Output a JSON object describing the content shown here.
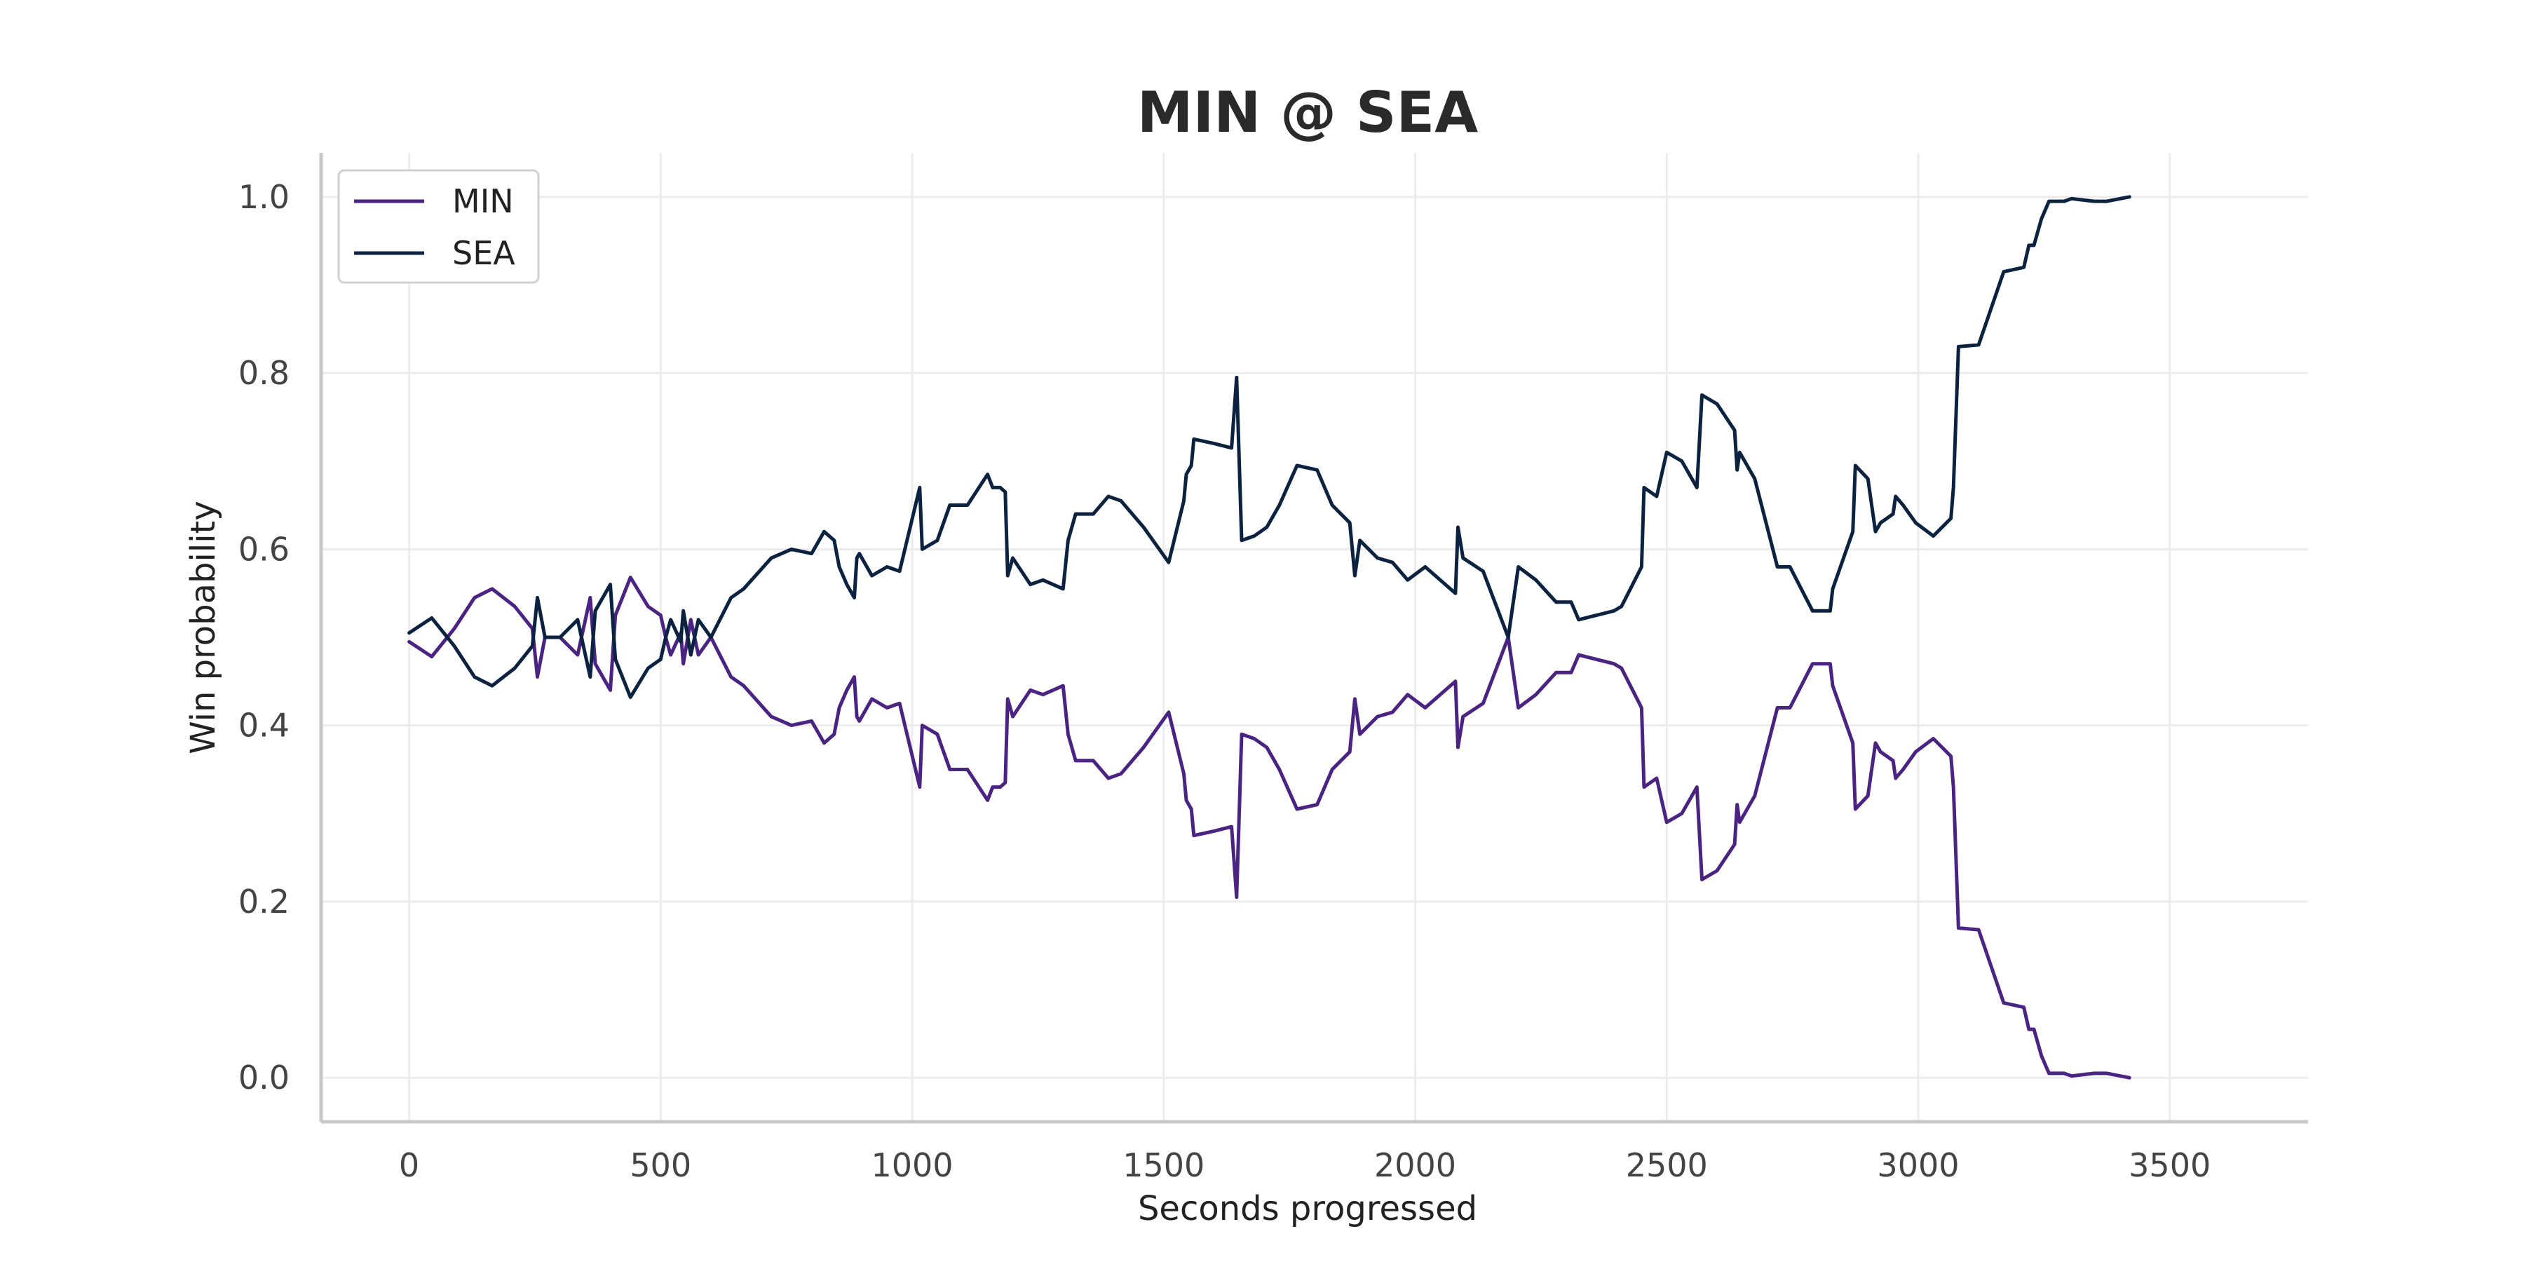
{
  "chart_data": {
    "type": "line",
    "title": "MIN @ SEA",
    "xlabel": "Seconds progressed",
    "ylabel": "Win probability",
    "xlim": [
      -175,
      3775
    ],
    "ylim": [
      -0.05,
      1.05
    ],
    "xticks": [
      0,
      500,
      1000,
      1500,
      2000,
      2500,
      3000,
      3500
    ],
    "yticks": [
      0.0,
      0.2,
      0.4,
      0.6,
      0.8,
      1.0
    ],
    "xtick_labels": [
      "0",
      "500",
      "1000",
      "1500",
      "2000",
      "2500",
      "3000",
      "3500"
    ],
    "ytick_labels": [
      "0.0",
      "0.2",
      "0.4",
      "0.6",
      "0.8",
      "1.0"
    ],
    "grid": true,
    "legend_position": "top-left",
    "series": [
      {
        "name": "MIN",
        "color": "#4b2483",
        "points": [
          [
            0,
            0.495
          ],
          [
            45,
            0.478
          ],
          [
            90,
            0.51
          ],
          [
            130,
            0.545
          ],
          [
            165,
            0.555
          ],
          [
            210,
            0.535
          ],
          [
            245,
            0.51
          ],
          [
            255,
            0.455
          ],
          [
            270,
            0.5
          ],
          [
            300,
            0.5
          ],
          [
            335,
            0.48
          ],
          [
            360,
            0.545
          ],
          [
            370,
            0.47
          ],
          [
            400,
            0.44
          ],
          [
            410,
            0.525
          ],
          [
            440,
            0.568
          ],
          [
            475,
            0.535
          ],
          [
            500,
            0.525
          ],
          [
            510,
            0.5
          ],
          [
            520,
            0.48
          ],
          [
            540,
            0.505
          ],
          [
            545,
            0.47
          ],
          [
            560,
            0.52
          ],
          [
            575,
            0.48
          ],
          [
            600,
            0.5
          ],
          [
            640,
            0.455
          ],
          [
            665,
            0.445
          ],
          [
            720,
            0.41
          ],
          [
            760,
            0.4
          ],
          [
            800,
            0.405
          ],
          [
            825,
            0.38
          ],
          [
            845,
            0.39
          ],
          [
            855,
            0.42
          ],
          [
            870,
            0.44
          ],
          [
            885,
            0.455
          ],
          [
            890,
            0.41
          ],
          [
            895,
            0.405
          ],
          [
            920,
            0.43
          ],
          [
            950,
            0.42
          ],
          [
            975,
            0.425
          ],
          [
            1015,
            0.33
          ],
          [
            1020,
            0.4
          ],
          [
            1050,
            0.39
          ],
          [
            1075,
            0.35
          ],
          [
            1110,
            0.35
          ],
          [
            1150,
            0.315
          ],
          [
            1160,
            0.33
          ],
          [
            1175,
            0.33
          ],
          [
            1185,
            0.335
          ],
          [
            1190,
            0.43
          ],
          [
            1200,
            0.41
          ],
          [
            1235,
            0.44
          ],
          [
            1260,
            0.435
          ],
          [
            1300,
            0.445
          ],
          [
            1310,
            0.39
          ],
          [
            1325,
            0.36
          ],
          [
            1360,
            0.36
          ],
          [
            1390,
            0.34
          ],
          [
            1415,
            0.345
          ],
          [
            1460,
            0.375
          ],
          [
            1510,
            0.415
          ],
          [
            1540,
            0.345
          ],
          [
            1545,
            0.315
          ],
          [
            1555,
            0.305
          ],
          [
            1560,
            0.275
          ],
          [
            1600,
            0.28
          ],
          [
            1635,
            0.285
          ],
          [
            1645,
            0.205
          ],
          [
            1655,
            0.39
          ],
          [
            1680,
            0.385
          ],
          [
            1705,
            0.375
          ],
          [
            1730,
            0.35
          ],
          [
            1765,
            0.305
          ],
          [
            1805,
            0.31
          ],
          [
            1835,
            0.35
          ],
          [
            1870,
            0.37
          ],
          [
            1880,
            0.43
          ],
          [
            1890,
            0.39
          ],
          [
            1925,
            0.41
          ],
          [
            1955,
            0.415
          ],
          [
            1985,
            0.435
          ],
          [
            2020,
            0.42
          ],
          [
            2080,
            0.45
          ],
          [
            2085,
            0.375
          ],
          [
            2095,
            0.41
          ],
          [
            2135,
            0.425
          ],
          [
            2155,
            0.455
          ],
          [
            2185,
            0.5
          ],
          [
            2205,
            0.42
          ],
          [
            2240,
            0.435
          ],
          [
            2280,
            0.46
          ],
          [
            2310,
            0.46
          ],
          [
            2325,
            0.48
          ],
          [
            2360,
            0.475
          ],
          [
            2395,
            0.47
          ],
          [
            2410,
            0.465
          ],
          [
            2450,
            0.42
          ],
          [
            2455,
            0.33
          ],
          [
            2480,
            0.34
          ],
          [
            2500,
            0.29
          ],
          [
            2530,
            0.3
          ],
          [
            2560,
            0.33
          ],
          [
            2570,
            0.225
          ],
          [
            2600,
            0.235
          ],
          [
            2635,
            0.265
          ],
          [
            2640,
            0.31
          ],
          [
            2645,
            0.29
          ],
          [
            2675,
            0.32
          ],
          [
            2720,
            0.42
          ],
          [
            2745,
            0.42
          ],
          [
            2790,
            0.47
          ],
          [
            2825,
            0.47
          ],
          [
            2830,
            0.445
          ],
          [
            2870,
            0.38
          ],
          [
            2875,
            0.305
          ],
          [
            2900,
            0.32
          ],
          [
            2915,
            0.38
          ],
          [
            2925,
            0.37
          ],
          [
            2950,
            0.36
          ],
          [
            2955,
            0.34
          ],
          [
            2970,
            0.35
          ],
          [
            2995,
            0.37
          ],
          [
            3030,
            0.385
          ],
          [
            3065,
            0.365
          ],
          [
            3070,
            0.33
          ],
          [
            3080,
            0.17
          ],
          [
            3120,
            0.168
          ],
          [
            3170,
            0.085
          ],
          [
            3210,
            0.08
          ],
          [
            3220,
            0.055
          ],
          [
            3230,
            0.055
          ],
          [
            3245,
            0.025
          ],
          [
            3260,
            0.005
          ],
          [
            3290,
            0.005
          ],
          [
            3305,
            0.002
          ],
          [
            3320,
            0.003
          ],
          [
            3350,
            0.005
          ],
          [
            3375,
            0.005
          ],
          [
            3420,
            0.0
          ]
        ]
      },
      {
        "name": "SEA",
        "color": "#0b2240",
        "points": [
          [
            0,
            0.505
          ],
          [
            45,
            0.522
          ],
          [
            90,
            0.49
          ],
          [
            130,
            0.455
          ],
          [
            165,
            0.445
          ],
          [
            210,
            0.465
          ],
          [
            245,
            0.49
          ],
          [
            255,
            0.545
          ],
          [
            270,
            0.5
          ],
          [
            300,
            0.5
          ],
          [
            335,
            0.52
          ],
          [
            360,
            0.455
          ],
          [
            370,
            0.53
          ],
          [
            400,
            0.56
          ],
          [
            410,
            0.475
          ],
          [
            440,
            0.432
          ],
          [
            475,
            0.465
          ],
          [
            500,
            0.475
          ],
          [
            510,
            0.5
          ],
          [
            520,
            0.52
          ],
          [
            540,
            0.495
          ],
          [
            545,
            0.53
          ],
          [
            560,
            0.48
          ],
          [
            575,
            0.52
          ],
          [
            600,
            0.5
          ],
          [
            640,
            0.545
          ],
          [
            665,
            0.555
          ],
          [
            720,
            0.59
          ],
          [
            760,
            0.6
          ],
          [
            800,
            0.595
          ],
          [
            825,
            0.62
          ],
          [
            845,
            0.61
          ],
          [
            855,
            0.58
          ],
          [
            870,
            0.56
          ],
          [
            885,
            0.545
          ],
          [
            890,
            0.59
          ],
          [
            895,
            0.595
          ],
          [
            920,
            0.57
          ],
          [
            950,
            0.58
          ],
          [
            975,
            0.575
          ],
          [
            1015,
            0.67
          ],
          [
            1020,
            0.6
          ],
          [
            1050,
            0.61
          ],
          [
            1075,
            0.65
          ],
          [
            1110,
            0.65
          ],
          [
            1150,
            0.685
          ],
          [
            1160,
            0.67
          ],
          [
            1175,
            0.67
          ],
          [
            1185,
            0.665
          ],
          [
            1190,
            0.57
          ],
          [
            1200,
            0.59
          ],
          [
            1235,
            0.56
          ],
          [
            1260,
            0.565
          ],
          [
            1300,
            0.555
          ],
          [
            1310,
            0.61
          ],
          [
            1325,
            0.64
          ],
          [
            1360,
            0.64
          ],
          [
            1390,
            0.66
          ],
          [
            1415,
            0.655
          ],
          [
            1460,
            0.625
          ],
          [
            1510,
            0.585
          ],
          [
            1540,
            0.655
          ],
          [
            1545,
            0.685
          ],
          [
            1555,
            0.695
          ],
          [
            1560,
            0.725
          ],
          [
            1600,
            0.72
          ],
          [
            1635,
            0.715
          ],
          [
            1645,
            0.795
          ],
          [
            1655,
            0.61
          ],
          [
            1680,
            0.615
          ],
          [
            1705,
            0.625
          ],
          [
            1730,
            0.65
          ],
          [
            1765,
            0.695
          ],
          [
            1805,
            0.69
          ],
          [
            1835,
            0.65
          ],
          [
            1870,
            0.63
          ],
          [
            1880,
            0.57
          ],
          [
            1890,
            0.61
          ],
          [
            1925,
            0.59
          ],
          [
            1955,
            0.585
          ],
          [
            1985,
            0.565
          ],
          [
            2020,
            0.58
          ],
          [
            2080,
            0.55
          ],
          [
            2085,
            0.625
          ],
          [
            2095,
            0.59
          ],
          [
            2135,
            0.575
          ],
          [
            2155,
            0.545
          ],
          [
            2185,
            0.5
          ],
          [
            2205,
            0.58
          ],
          [
            2240,
            0.565
          ],
          [
            2280,
            0.54
          ],
          [
            2310,
            0.54
          ],
          [
            2325,
            0.52
          ],
          [
            2360,
            0.525
          ],
          [
            2395,
            0.53
          ],
          [
            2410,
            0.535
          ],
          [
            2450,
            0.58
          ],
          [
            2455,
            0.67
          ],
          [
            2480,
            0.66
          ],
          [
            2500,
            0.71
          ],
          [
            2530,
            0.7
          ],
          [
            2560,
            0.67
          ],
          [
            2570,
            0.775
          ],
          [
            2600,
            0.765
          ],
          [
            2635,
            0.735
          ],
          [
            2640,
            0.69
          ],
          [
            2645,
            0.71
          ],
          [
            2675,
            0.68
          ],
          [
            2720,
            0.58
          ],
          [
            2745,
            0.58
          ],
          [
            2790,
            0.53
          ],
          [
            2825,
            0.53
          ],
          [
            2830,
            0.555
          ],
          [
            2870,
            0.62
          ],
          [
            2875,
            0.695
          ],
          [
            2900,
            0.68
          ],
          [
            2915,
            0.62
          ],
          [
            2925,
            0.63
          ],
          [
            2950,
            0.64
          ],
          [
            2955,
            0.66
          ],
          [
            2970,
            0.65
          ],
          [
            2995,
            0.63
          ],
          [
            3030,
            0.615
          ],
          [
            3065,
            0.635
          ],
          [
            3070,
            0.67
          ],
          [
            3080,
            0.83
          ],
          [
            3120,
            0.832
          ],
          [
            3170,
            0.915
          ],
          [
            3210,
            0.92
          ],
          [
            3220,
            0.945
          ],
          [
            3230,
            0.945
          ],
          [
            3245,
            0.975
          ],
          [
            3260,
            0.995
          ],
          [
            3290,
            0.995
          ],
          [
            3305,
            0.998
          ],
          [
            3320,
            0.997
          ],
          [
            3350,
            0.995
          ],
          [
            3375,
            0.995
          ],
          [
            3420,
            1.0
          ]
        ]
      }
    ]
  }
}
